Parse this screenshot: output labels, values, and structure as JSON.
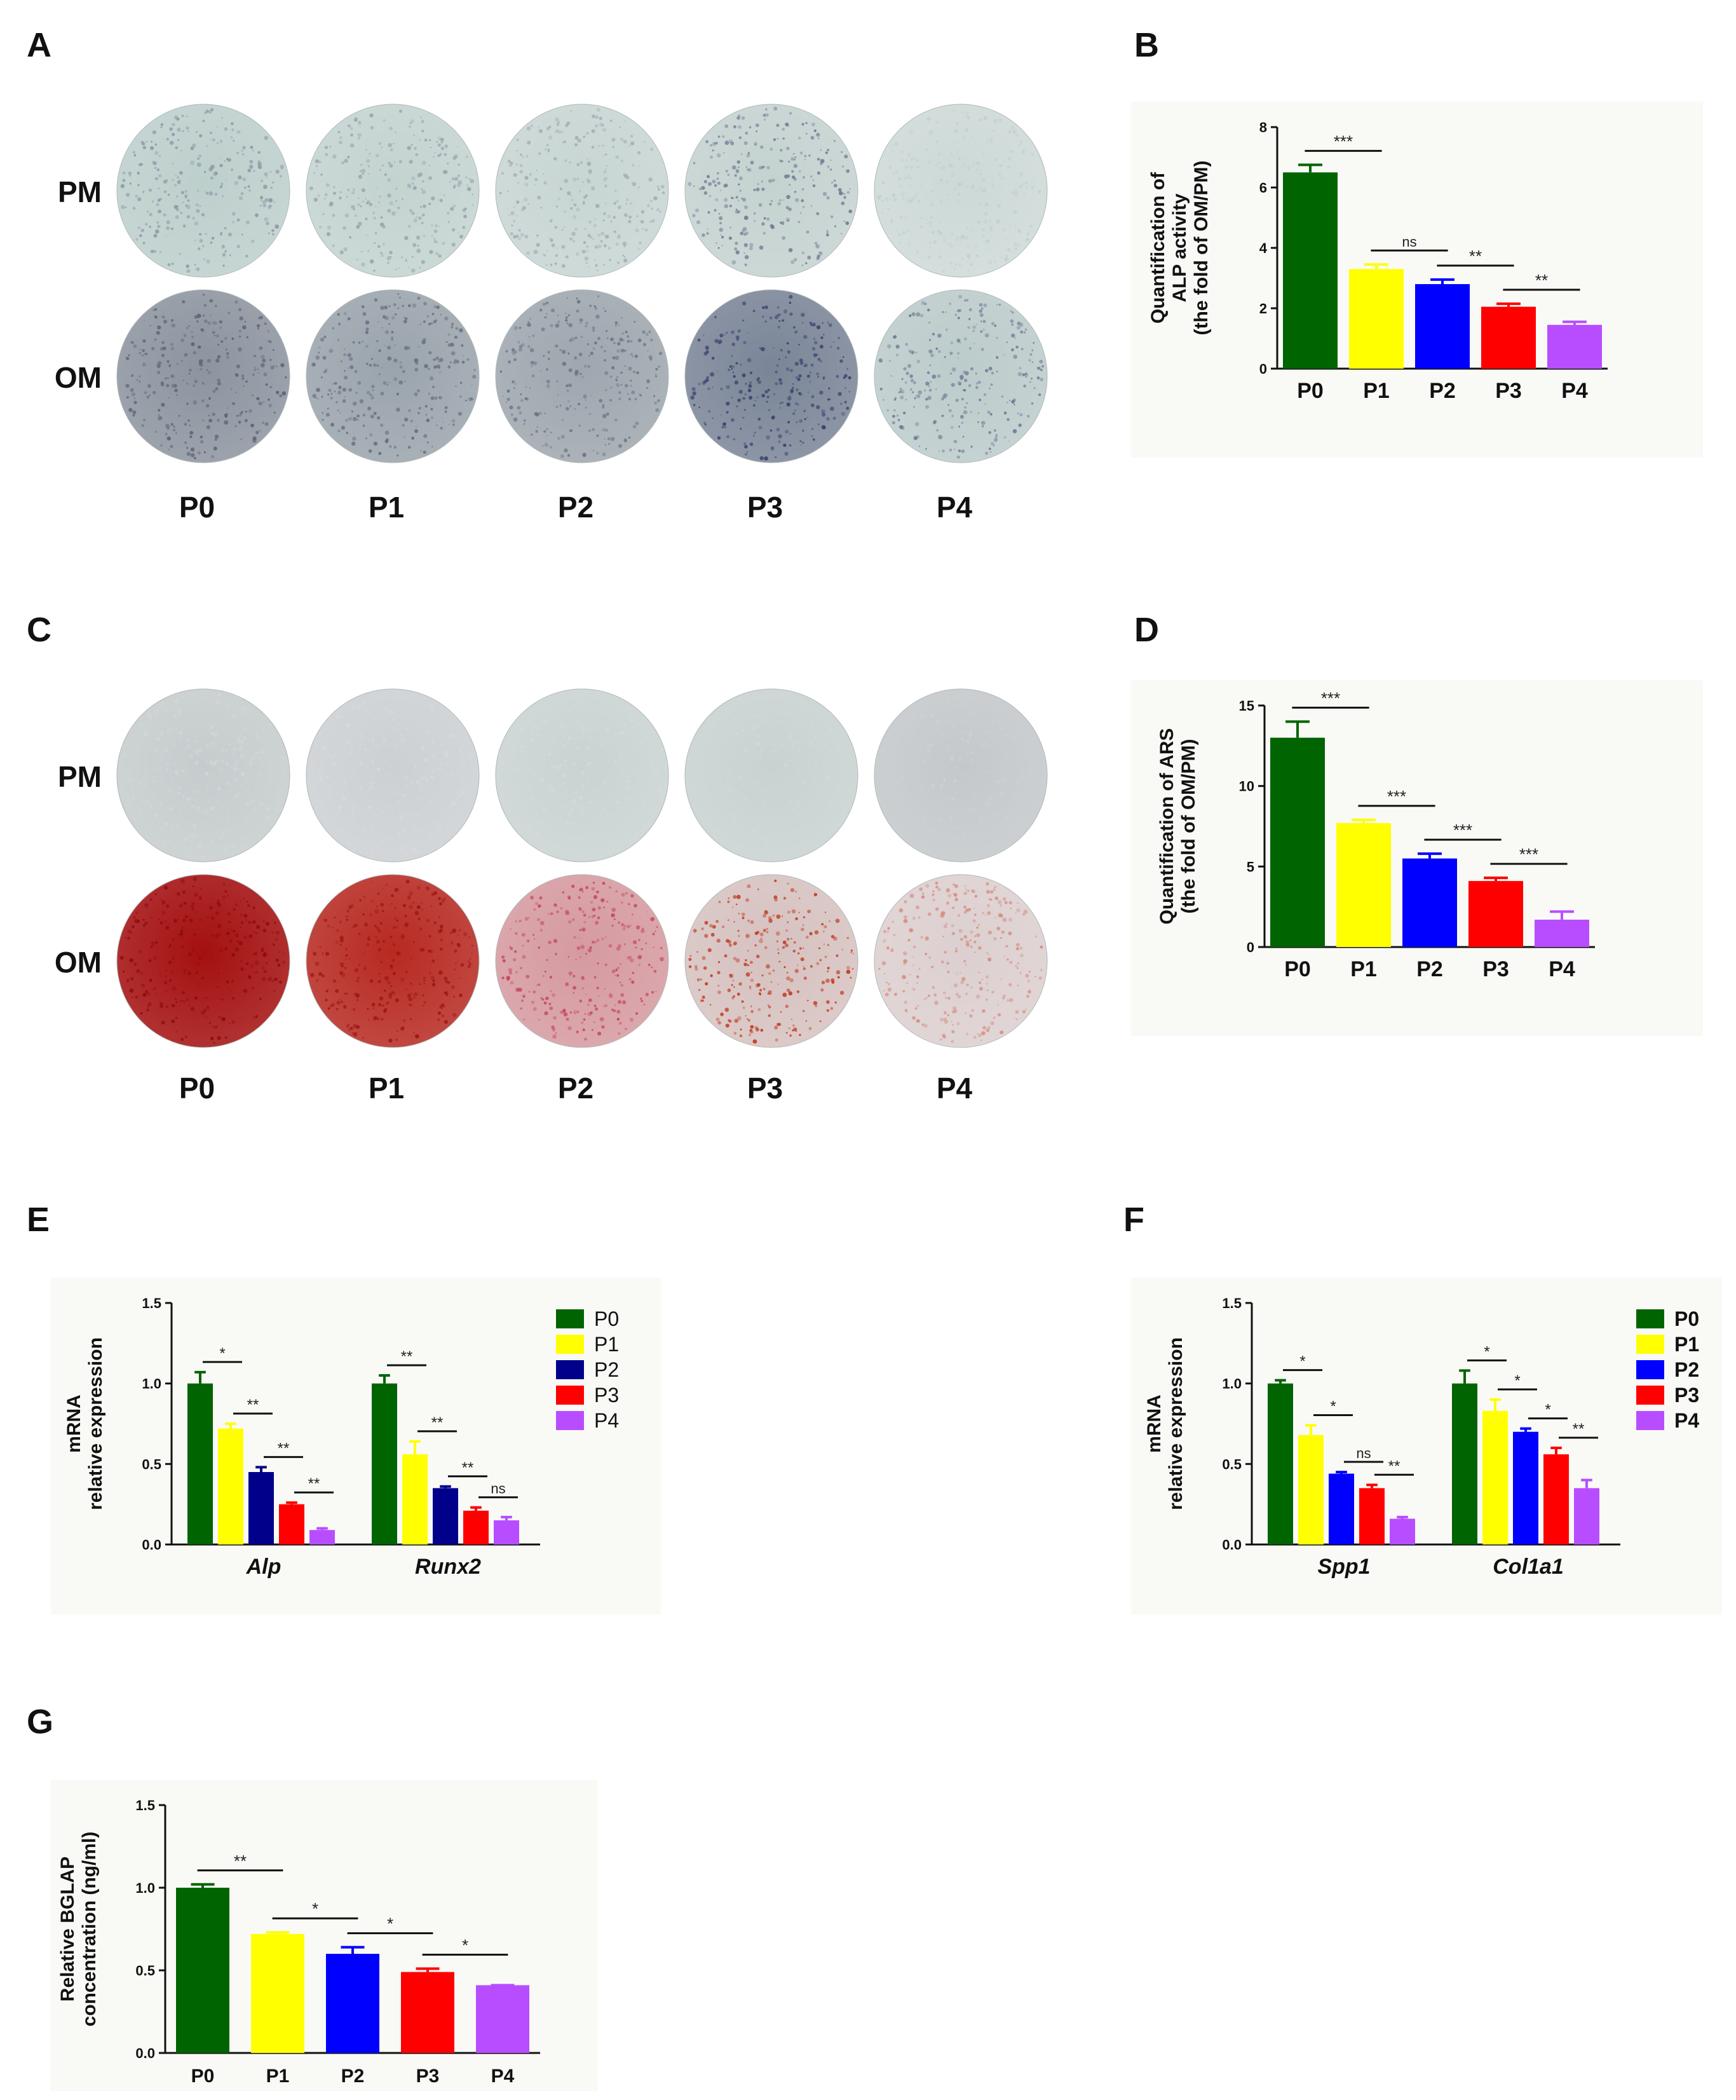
{
  "figure": {
    "panel_labels": [
      "A",
      "B",
      "C",
      "D",
      "E",
      "F",
      "G"
    ]
  },
  "plates": [
    {
      "panel": "A",
      "stain": "ALP",
      "rows": [
        "PM",
        "OM"
      ],
      "columns": [
        "P0",
        "P1",
        "P2",
        "P3",
        "P4"
      ],
      "colors": {
        "PM": [
          "#bdcfcc",
          "#c3d3d0",
          "#c7d5d3",
          "#c4d2d0",
          "#cdd9d7"
        ],
        "OM": [
          "#8d949f",
          "#9aa4ab",
          "#9ea7ae",
          "#7a8597",
          "#bccbcb"
        ]
      },
      "dots": {
        "PM": [
          "#8e96a4",
          "#9aa2ac",
          "#a4acb3",
          "#6f7690",
          "#c3cfcf"
        ],
        "OM": [
          "#5c6175",
          "#656c80",
          "#6a7183",
          "#3a3f6c",
          "#6e7592"
        ]
      }
    },
    {
      "panel": "C",
      "stain": "ARS",
      "rows": [
        "PM",
        "OM"
      ],
      "columns": [
        "P0",
        "P1",
        "P2",
        "P3",
        "P4"
      ],
      "colors": {
        "PM": [
          "#c6cccd",
          "#ccd0d3",
          "#c9d3d2",
          "#c8d2d1",
          "#c4c8ca"
        ],
        "OM": [
          "#a41010",
          "#b72a22",
          "#d59aa0",
          "#d6c2c0",
          "#dccfcf"
        ]
      },
      "dots": {
        "PM": [
          "#d2d6d7",
          "#d6d9dc",
          "#d2dada",
          "#d0d8d8",
          "#cdd0d2"
        ],
        "OM": [
          "#8a0b0b",
          "#9c1414",
          "#c3455c",
          "#c0381e",
          "#d58a7e"
        ]
      }
    }
  ],
  "chart_data": [
    {
      "panel": "B",
      "type": "bar",
      "categories": [
        "P0",
        "P1",
        "P2",
        "P3",
        "P4"
      ],
      "values": [
        6.5,
        3.3,
        2.8,
        2.05,
        1.45
      ],
      "errors": [
        0.25,
        0.15,
        0.15,
        0.1,
        0.1
      ],
      "colors": [
        "#006400",
        "#ffff00",
        "#0000ff",
        "#ff0000",
        "#b84dff"
      ],
      "ylabel": [
        "Quantification of",
        "ALP activity",
        "(the fold of OM/PM)"
      ],
      "ylim": [
        0,
        8
      ],
      "yticks": [
        "0",
        "2",
        "4",
        "6",
        "8"
      ],
      "significance": [
        {
          "from": 0,
          "to": 1,
          "label": "***"
        },
        {
          "from": 1,
          "to": 2,
          "label": "ns"
        },
        {
          "from": 2,
          "to": 3,
          "label": "**"
        },
        {
          "from": 3,
          "to": 4,
          "label": "**"
        }
      ]
    },
    {
      "panel": "D",
      "type": "bar",
      "categories": [
        "P0",
        "P1",
        "P2",
        "P3",
        "P4"
      ],
      "values": [
        13.0,
        7.7,
        5.5,
        4.1,
        1.7
      ],
      "errors": [
        1.0,
        0.2,
        0.3,
        0.2,
        0.5
      ],
      "colors": [
        "#006400",
        "#ffff00",
        "#0000ff",
        "#ff0000",
        "#b84dff"
      ],
      "ylabel": [
        "Quantification of ARS",
        "(the fold of OM/PM)"
      ],
      "ylim": [
        0,
        15
      ],
      "yticks": [
        "0",
        "5",
        "10",
        "15"
      ],
      "significance": [
        {
          "from": 0,
          "to": 1,
          "label": "***"
        },
        {
          "from": 1,
          "to": 2,
          "label": "***"
        },
        {
          "from": 2,
          "to": 3,
          "label": "***"
        },
        {
          "from": 3,
          "to": 4,
          "label": "***"
        }
      ]
    },
    {
      "panel": "E",
      "type": "grouped-bar",
      "groups": [
        "Alp",
        "Runx2"
      ],
      "series": [
        {
          "name": "P0",
          "values": [
            1.0,
            1.0
          ],
          "errors": [
            0.07,
            0.05
          ]
        },
        {
          "name": "P1",
          "values": [
            0.72,
            0.56
          ],
          "errors": [
            0.03,
            0.08
          ]
        },
        {
          "name": "P2",
          "values": [
            0.45,
            0.35
          ],
          "errors": [
            0.03,
            0.01
          ]
        },
        {
          "name": "P3",
          "values": [
            0.25,
            0.21
          ],
          "errors": [
            0.01,
            0.02
          ]
        },
        {
          "name": "P4",
          "values": [
            0.09,
            0.15
          ],
          "errors": [
            0.01,
            0.02
          ]
        }
      ],
      "colors": [
        "#006400",
        "#ffff00",
        "#00008b",
        "#ff0000",
        "#b84dff"
      ],
      "ylabel": [
        "mRNA",
        "relative expression"
      ],
      "ylim": [
        0,
        1.5
      ],
      "yticks": [
        "0.0",
        "0.5",
        "1.0",
        "1.5"
      ],
      "significance": [
        {
          "group": 0,
          "from": 0,
          "to": 1,
          "label": "*"
        },
        {
          "group": 0,
          "from": 1,
          "to": 2,
          "label": "**"
        },
        {
          "group": 0,
          "from": 2,
          "to": 3,
          "label": "**"
        },
        {
          "group": 0,
          "from": 3,
          "to": 4,
          "label": "**"
        },
        {
          "group": 1,
          "from": 0,
          "to": 1,
          "label": "**"
        },
        {
          "group": 1,
          "from": 1,
          "to": 2,
          "label": "**"
        },
        {
          "group": 1,
          "from": 2,
          "to": 3,
          "label": "**"
        },
        {
          "group": 1,
          "from": 3,
          "to": 4,
          "label": "ns"
        }
      ]
    },
    {
      "panel": "F",
      "type": "grouped-bar",
      "groups": [
        "Spp1",
        "Col1a1"
      ],
      "series": [
        {
          "name": "P0",
          "values": [
            1.0,
            1.0
          ],
          "errors": [
            0.02,
            0.08
          ]
        },
        {
          "name": "P1",
          "values": [
            0.68,
            0.83
          ],
          "errors": [
            0.06,
            0.07
          ]
        },
        {
          "name": "P2",
          "values": [
            0.44,
            0.7
          ],
          "errors": [
            0.01,
            0.02
          ]
        },
        {
          "name": "P3",
          "values": [
            0.35,
            0.56
          ],
          "errors": [
            0.02,
            0.04
          ]
        },
        {
          "name": "P4",
          "values": [
            0.16,
            0.35
          ],
          "errors": [
            0.01,
            0.05
          ]
        }
      ],
      "colors": [
        "#006400",
        "#ffff00",
        "#0000ff",
        "#ff0000",
        "#b84dff"
      ],
      "ylabel": [
        "mRNA",
        "relative expression"
      ],
      "ylim": [
        0,
        1.5
      ],
      "yticks": [
        "0.0",
        "0.5",
        "1.0",
        "1.5"
      ],
      "significance": [
        {
          "group": 0,
          "from": 0,
          "to": 1,
          "label": "*"
        },
        {
          "group": 0,
          "from": 1,
          "to": 2,
          "label": "*"
        },
        {
          "group": 0,
          "from": 2,
          "to": 3,
          "label": "ns"
        },
        {
          "group": 0,
          "from": 3,
          "to": 4,
          "label": "**"
        },
        {
          "group": 1,
          "from": 0,
          "to": 1,
          "label": "*"
        },
        {
          "group": 1,
          "from": 1,
          "to": 2,
          "label": "*"
        },
        {
          "group": 1,
          "from": 2,
          "to": 3,
          "label": "*"
        },
        {
          "group": 1,
          "from": 3,
          "to": 4,
          "label": "**"
        }
      ]
    },
    {
      "panel": "G",
      "type": "bar",
      "categories": [
        "P0",
        "P1",
        "P2",
        "P3",
        "P4"
      ],
      "values": [
        1.0,
        0.72,
        0.6,
        0.49,
        0.41
      ],
      "errors": [
        0.02,
        0.01,
        0.04,
        0.02,
        0.0
      ],
      "colors": [
        "#006400",
        "#ffff00",
        "#0000ff",
        "#ff0000",
        "#b84dff"
      ],
      "ylabel": [
        "Relative BGLAP",
        "concentration (ng/ml)"
      ],
      "ylim": [
        0,
        1.5
      ],
      "yticks": [
        "0.0",
        "0.5",
        "1.0",
        "1.5"
      ],
      "significance": [
        {
          "from": 0,
          "to": 1,
          "label": "**"
        },
        {
          "from": 1,
          "to": 2,
          "label": "*"
        },
        {
          "from": 2,
          "to": 3,
          "label": "*"
        },
        {
          "from": 3,
          "to": 4,
          "label": "*"
        }
      ]
    }
  ]
}
